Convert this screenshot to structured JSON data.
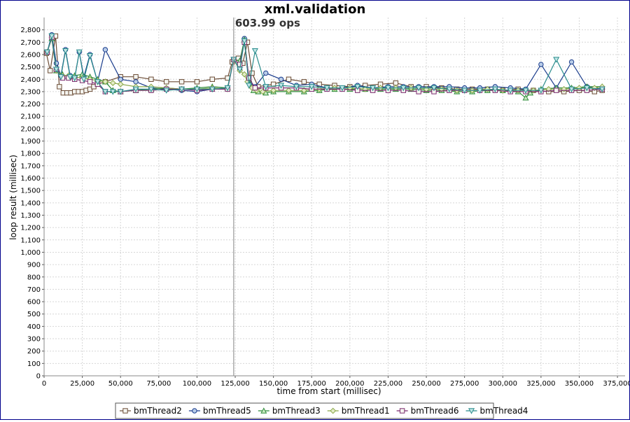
{
  "chart_data": {
    "type": "line",
    "title": "xml.validation",
    "xlabel": "time from start (millisec)",
    "ylabel": "loop result (millisec)",
    "xlim": [
      0,
      380000
    ],
    "ylim": [
      0,
      2900
    ],
    "x_ticks": [
      0,
      25000,
      50000,
      75000,
      100000,
      125000,
      150000,
      175000,
      200000,
      225000,
      250000,
      275000,
      300000,
      325000,
      350000,
      375000
    ],
    "x_tick_labels": [
      "0",
      "25,000",
      "50,000",
      "75,000",
      "100,000",
      "125,000",
      "150,000",
      "175,000",
      "200,000",
      "225,000",
      "250,000",
      "275,000",
      "300,000",
      "325,000",
      "350,000",
      "375,000"
    ],
    "y_ticks": [
      0,
      100,
      200,
      300,
      400,
      500,
      600,
      700,
      800,
      900,
      1000,
      1100,
      1200,
      1300,
      1400,
      1500,
      1600,
      1700,
      1800,
      1900,
      2000,
      2100,
      2200,
      2300,
      2400,
      2500,
      2600,
      2700,
      2800
    ],
    "y_tick_labels": [
      "0",
      "100",
      "200",
      "300",
      "400",
      "500",
      "600",
      "700",
      "800",
      "900",
      "1,000",
      "1,100",
      "1,200",
      "1,300",
      "1,400",
      "1,500",
      "1,600",
      "1,700",
      "1,800",
      "1,900",
      "2,000",
      "2,100",
      "2,200",
      "2,300",
      "2,400",
      "2,500",
      "2,600",
      "2,700",
      "2,800"
    ],
    "grid": true,
    "legend_position": "bottom",
    "annotation": {
      "x": 124000,
      "label": "603.99 ops"
    },
    "series": [
      {
        "name": "bmThread2",
        "color": "#6b4c36",
        "marker": "square",
        "x": [
          1500,
          4000,
          7500,
          10000,
          12500,
          15000,
          17500,
          20000,
          22500,
          25000,
          27500,
          30000,
          32500,
          35000,
          40000,
          50000,
          60000,
          70000,
          80000,
          90000,
          100000,
          110000,
          120000,
          123000,
          127000,
          130000,
          133000,
          136000,
          140000,
          150000,
          160000,
          170000,
          180000,
          190000,
          200000,
          210000,
          220000,
          230000,
          240000,
          250000,
          260000,
          270000,
          280000,
          290000,
          300000,
          310000,
          320000,
          330000,
          340000,
          350000,
          360000,
          365000
        ],
        "y": [
          2610,
          2470,
          2750,
          2340,
          2290,
          2290,
          2290,
          2300,
          2300,
          2300,
          2310,
          2320,
          2340,
          2360,
          2380,
          2420,
          2420,
          2400,
          2380,
          2380,
          2380,
          2400,
          2410,
          2540,
          2570,
          2530,
          2700,
          2450,
          2340,
          2360,
          2400,
          2380,
          2360,
          2350,
          2340,
          2350,
          2360,
          2370,
          2340,
          2340,
          2330,
          2320,
          2320,
          2320,
          2310,
          2320,
          2310,
          2300,
          2300,
          2310,
          2300,
          2310
        ]
      },
      {
        "name": "bmThread5",
        "color": "#1a3c8c",
        "marker": "circle",
        "x": [
          2000,
          5000,
          8000,
          11000,
          14000,
          17000,
          20000,
          23000,
          26000,
          30000,
          35000,
          40000,
          50000,
          60000,
          70000,
          80000,
          90000,
          100000,
          110000,
          120000,
          124000,
          128000,
          131000,
          134000,
          138000,
          145000,
          155000,
          165000,
          175000,
          185000,
          195000,
          205000,
          215000,
          225000,
          235000,
          245000,
          255000,
          265000,
          275000,
          285000,
          295000,
          305000,
          315000,
          325000,
          335000,
          345000,
          355000,
          365000
        ],
        "y": [
          2620,
          2760,
          2530,
          2430,
          2640,
          2430,
          2410,
          2620,
          2420,
          2600,
          2380,
          2640,
          2400,
          2380,
          2330,
          2320,
          2310,
          2300,
          2320,
          2330,
          2560,
          2480,
          2730,
          2380,
          2340,
          2450,
          2400,
          2350,
          2360,
          2330,
          2330,
          2350,
          2330,
          2340,
          2340,
          2340,
          2340,
          2340,
          2330,
          2330,
          2340,
          2330,
          2320,
          2520,
          2330,
          2540,
          2340,
          2320
        ]
      },
      {
        "name": "bmThread3",
        "color": "#2e8b3a",
        "marker": "triangle",
        "x": [
          2000,
          5000,
          8000,
          12000,
          16000,
          20000,
          25000,
          30000,
          35000,
          40000,
          45000,
          50000,
          60000,
          70000,
          80000,
          90000,
          100000,
          110000,
          120000,
          124000,
          128000,
          131000,
          134000,
          137000,
          140000,
          145000,
          150000,
          160000,
          170000,
          180000,
          190000,
          200000,
          210000,
          220000,
          230000,
          240000,
          250000,
          260000,
          270000,
          280000,
          290000,
          300000,
          310000,
          315000,
          318000,
          325000,
          335000,
          345000,
          355000,
          365000
        ],
        "y": [
          2620,
          2730,
          2470,
          2440,
          2420,
          2430,
          2440,
          2420,
          2400,
          2380,
          2310,
          2300,
          2310,
          2320,
          2330,
          2320,
          2330,
          2340,
          2330,
          2560,
          2550,
          2720,
          2400,
          2310,
          2300,
          2290,
          2300,
          2300,
          2300,
          2310,
          2320,
          2320,
          2320,
          2320,
          2320,
          2320,
          2310,
          2310,
          2300,
          2300,
          2310,
          2310,
          2300,
          2250,
          2290,
          2320,
          2330,
          2330,
          2340,
          2340
        ]
      },
      {
        "name": "bmThread1",
        "color": "#8aa84a",
        "marker": "diamond",
        "x": [
          2000,
          5000,
          8000,
          12000,
          16000,
          20000,
          25000,
          30000,
          35000,
          40000,
          45000,
          50000,
          60000,
          70000,
          80000,
          90000,
          100000,
          110000,
          120000,
          124000,
          128000,
          131000,
          133000,
          136000,
          139000,
          143000,
          150000,
          160000,
          170000,
          180000,
          190000,
          200000,
          210000,
          220000,
          230000,
          240000,
          250000,
          260000,
          270000,
          280000,
          290000,
          300000,
          310000,
          320000,
          330000,
          340000,
          350000,
          360000,
          365000
        ],
        "y": [
          2620,
          2740,
          2470,
          2430,
          2430,
          2420,
          2410,
          2400,
          2390,
          2380,
          2370,
          2360,
          2340,
          2340,
          2330,
          2320,
          2320,
          2330,
          2320,
          2560,
          2470,
          2440,
          2380,
          2330,
          2310,
          2300,
          2310,
          2310,
          2310,
          2320,
          2330,
          2330,
          2320,
          2330,
          2330,
          2330,
          2320,
          2320,
          2310,
          2310,
          2320,
          2310,
          2310,
          2310,
          2320,
          2320,
          2330,
          2330,
          2340
        ]
      },
      {
        "name": "bmThread6",
        "color": "#7a2a6e",
        "marker": "square",
        "x": [
          2000,
          5000,
          8000,
          12000,
          16000,
          20000,
          25000,
          30000,
          35000,
          40000,
          50000,
          60000,
          70000,
          80000,
          90000,
          100000,
          110000,
          120000,
          124000,
          128000,
          131000,
          134000,
          138000,
          145000,
          155000,
          165000,
          175000,
          185000,
          195000,
          205000,
          215000,
          225000,
          235000,
          245000,
          255000,
          265000,
          275000,
          285000,
          295000,
          305000,
          315000,
          325000,
          335000,
          345000,
          355000,
          365000
        ],
        "y": [
          2620,
          2740,
          2480,
          2410,
          2410,
          2400,
          2390,
          2380,
          2360,
          2300,
          2300,
          2310,
          2310,
          2320,
          2320,
          2310,
          2320,
          2320,
          2560,
          2520,
          2700,
          2410,
          2330,
          2330,
          2330,
          2330,
          2320,
          2320,
          2320,
          2310,
          2310,
          2310,
          2310,
          2300,
          2300,
          2310,
          2310,
          2310,
          2310,
          2300,
          2300,
          2300,
          2310,
          2310,
          2310,
          2320
        ]
      },
      {
        "name": "bmThread4",
        "color": "#2a8c8c",
        "marker": "triangle-down",
        "x": [
          2000,
          5000,
          8000,
          11000,
          14000,
          17000,
          20000,
          23000,
          26000,
          30000,
          35000,
          40000,
          45000,
          50000,
          60000,
          70000,
          80000,
          90000,
          100000,
          110000,
          120000,
          124000,
          128000,
          131000,
          134000,
          138000,
          145000,
          155000,
          165000,
          175000,
          185000,
          195000,
          205000,
          215000,
          225000,
          235000,
          245000,
          255000,
          265000,
          275000,
          285000,
          295000,
          305000,
          315000,
          325000,
          335000,
          345000,
          355000,
          365000
        ],
        "y": [
          2620,
          2750,
          2480,
          2420,
          2630,
          2420,
          2410,
          2620,
          2400,
          2590,
          2380,
          2300,
          2300,
          2300,
          2320,
          2320,
          2310,
          2320,
          2320,
          2320,
          2330,
          2560,
          2480,
          2710,
          2350,
          2630,
          2340,
          2350,
          2340,
          2340,
          2330,
          2330,
          2340,
          2330,
          2330,
          2330,
          2330,
          2330,
          2320,
          2310,
          2310,
          2320,
          2310,
          2310,
          2310,
          2560,
          2320,
          2330,
          2320
        ]
      }
    ]
  }
}
